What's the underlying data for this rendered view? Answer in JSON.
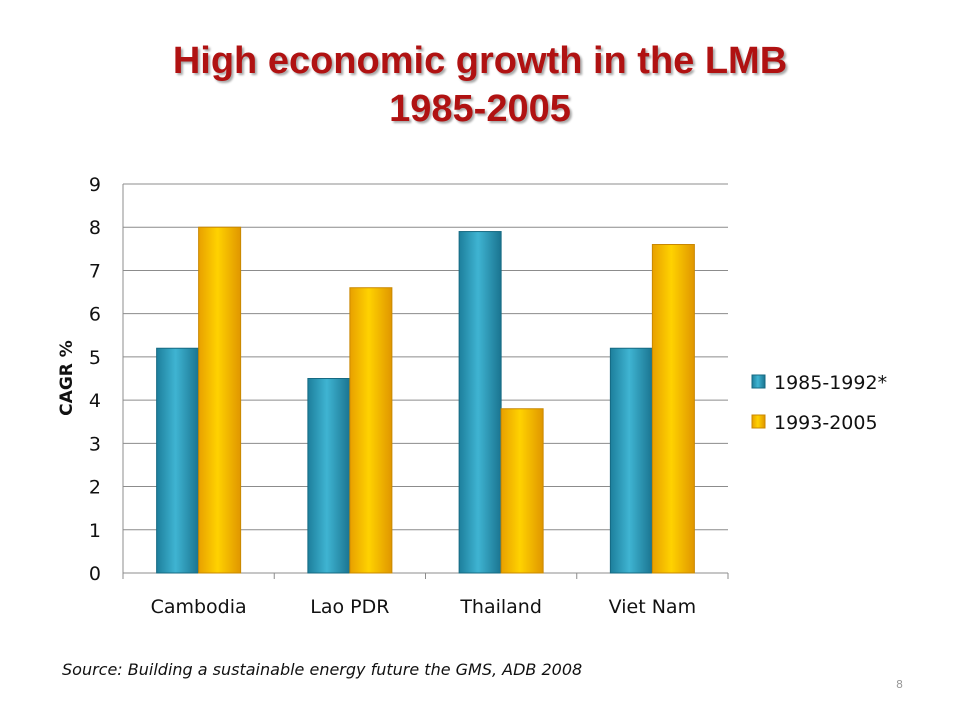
{
  "slide": {
    "title_line1": "High economic growth in the LMB",
    "title_line2": "1985-2005",
    "source": "Source: Building a sustainable energy future the GMS, ADB 2008",
    "page_number": "8"
  },
  "chart_data": {
    "type": "bar",
    "categories": [
      "Cambodia",
      "Lao PDR",
      "Thailand",
      "Viet Nam"
    ],
    "series": [
      {
        "name": "1985-1992*",
        "values": [
          5.2,
          4.5,
          7.9,
          5.2
        ],
        "color": "#2a9ab8"
      },
      {
        "name": "1993-2005",
        "values": [
          8.0,
          6.6,
          3.8,
          7.6
        ],
        "color": "#f8b800"
      }
    ],
    "ylabel": "CAGR %",
    "ylim": [
      0,
      9
    ],
    "yticks": [
      0,
      1,
      2,
      3,
      4,
      5,
      6,
      7,
      8,
      9
    ],
    "grid": true,
    "legend": "right"
  }
}
